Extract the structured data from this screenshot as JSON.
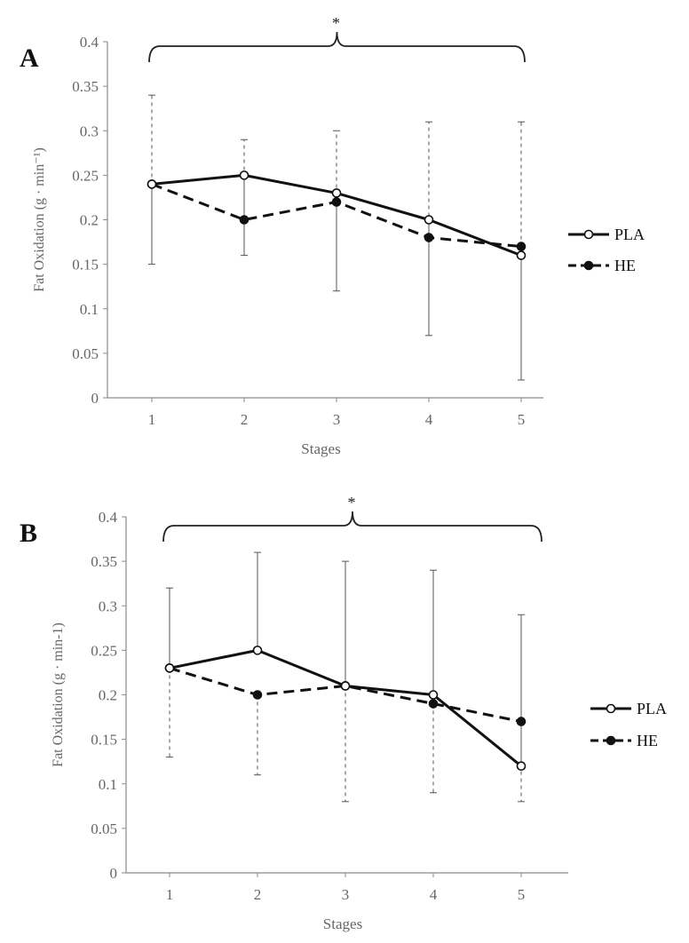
{
  "chart_data": [
    {
      "type": "line",
      "panel_label": "A",
      "title": "",
      "xlabel": "Stages",
      "ylabel": "Fat Oxidation (g · min⁻¹)",
      "x": [
        1,
        2,
        3,
        4,
        5
      ],
      "ylim": [
        0,
        0.4
      ],
      "yticks": [
        "0",
        "0.05",
        "0.1",
        "0.15",
        "0.2",
        "0.25",
        "0.3",
        "0.35",
        "0.4"
      ],
      "xticks": [
        "1",
        "2",
        "3",
        "4",
        "5"
      ],
      "grid": false,
      "legend_position": "right",
      "significance": "*",
      "series": [
        {
          "name": "PLA",
          "style": "solid",
          "marker": "open-circle",
          "values": [
            0.24,
            0.25,
            0.23,
            0.2,
            0.16
          ],
          "error_bar_direction": "down",
          "error_bar_ends": [
            0.15,
            0.16,
            0.12,
            0.07,
            0.02
          ]
        },
        {
          "name": "HE",
          "style": "dashed",
          "marker": "filled-circle",
          "values": [
            0.24,
            0.2,
            0.22,
            0.18,
            0.17
          ],
          "error_bar_direction": "up",
          "error_bar_ends": [
            0.34,
            0.29,
            0.3,
            0.31,
            0.31
          ]
        }
      ]
    },
    {
      "type": "line",
      "panel_label": "B",
      "title": "",
      "xlabel": "Stages",
      "ylabel": "Fat Oxidation (g · min-1)",
      "x": [
        1,
        2,
        3,
        4,
        5
      ],
      "ylim": [
        0,
        0.4
      ],
      "yticks": [
        "0",
        "0.05",
        "0.1",
        "0.15",
        "0.2",
        "0.25",
        "0.3",
        "0.35",
        "0.4"
      ],
      "xticks": [
        "1",
        "2",
        "3",
        "4",
        "5"
      ],
      "grid": false,
      "legend_position": "right",
      "significance": "*",
      "series": [
        {
          "name": "PLA",
          "style": "solid",
          "marker": "open-circle",
          "values": [
            0.23,
            0.25,
            0.21,
            0.2,
            0.12
          ],
          "error_bar_direction": "up",
          "error_bar_ends": [
            0.32,
            0.36,
            0.35,
            0.34,
            0.29
          ]
        },
        {
          "name": "HE",
          "style": "dashed",
          "marker": "filled-circle",
          "values": [
            0.23,
            0.2,
            0.21,
            0.19,
            0.17
          ],
          "error_bar_direction": "down",
          "error_bar_ends": [
            0.13,
            0.11,
            0.08,
            0.09,
            0.08
          ]
        }
      ]
    }
  ]
}
